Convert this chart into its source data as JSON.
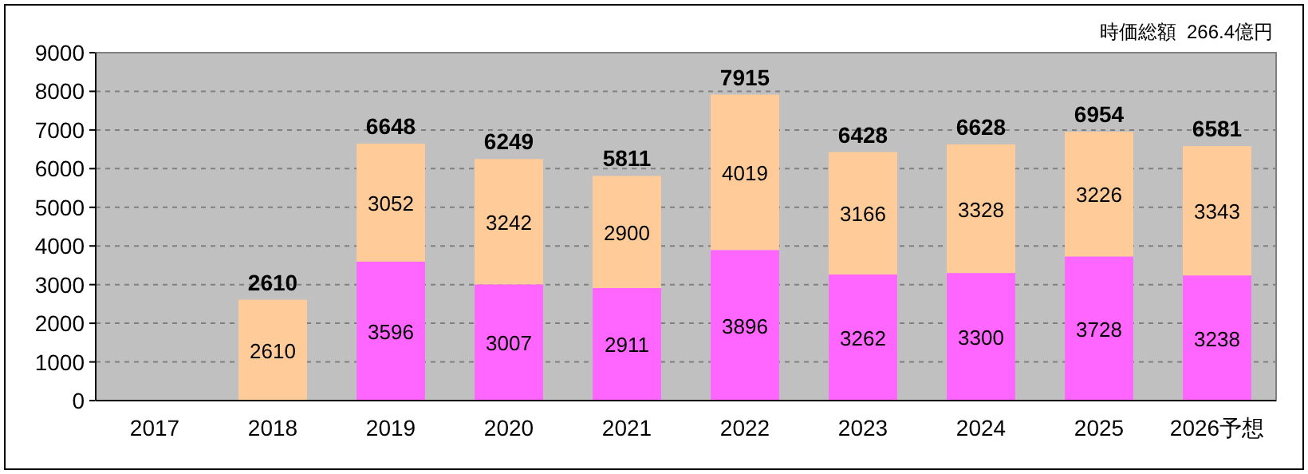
{
  "chart_data": {
    "type": "bar",
    "stacked": true,
    "annotations": [
      "時価総額  266.4億円"
    ],
    "categories": [
      "2017",
      "2018",
      "2019",
      "2020",
      "2021",
      "2022",
      "2023",
      "2024",
      "2025",
      "2026予想"
    ],
    "series": [
      {
        "color": "#ff66ff",
        "values": [
          null,
          null,
          3596,
          3007,
          2911,
          3896,
          3262,
          3300,
          3728,
          3238
        ]
      },
      {
        "color": "#ffcc99",
        "values": [
          null,
          2610,
          3052,
          3242,
          2900,
          4019,
          3166,
          3328,
          3226,
          3343
        ]
      }
    ],
    "totals": [
      null,
      "2610",
      "6648",
      "6249",
      "5811",
      "7915",
      "6428",
      "6628",
      "6954",
      "6581"
    ],
    "ylim": [
      0,
      9000
    ],
    "yticks": [
      0,
      1000,
      2000,
      3000,
      4000,
      5000,
      6000,
      7000,
      8000,
      9000
    ],
    "grid": "y",
    "data_labels": true
  }
}
